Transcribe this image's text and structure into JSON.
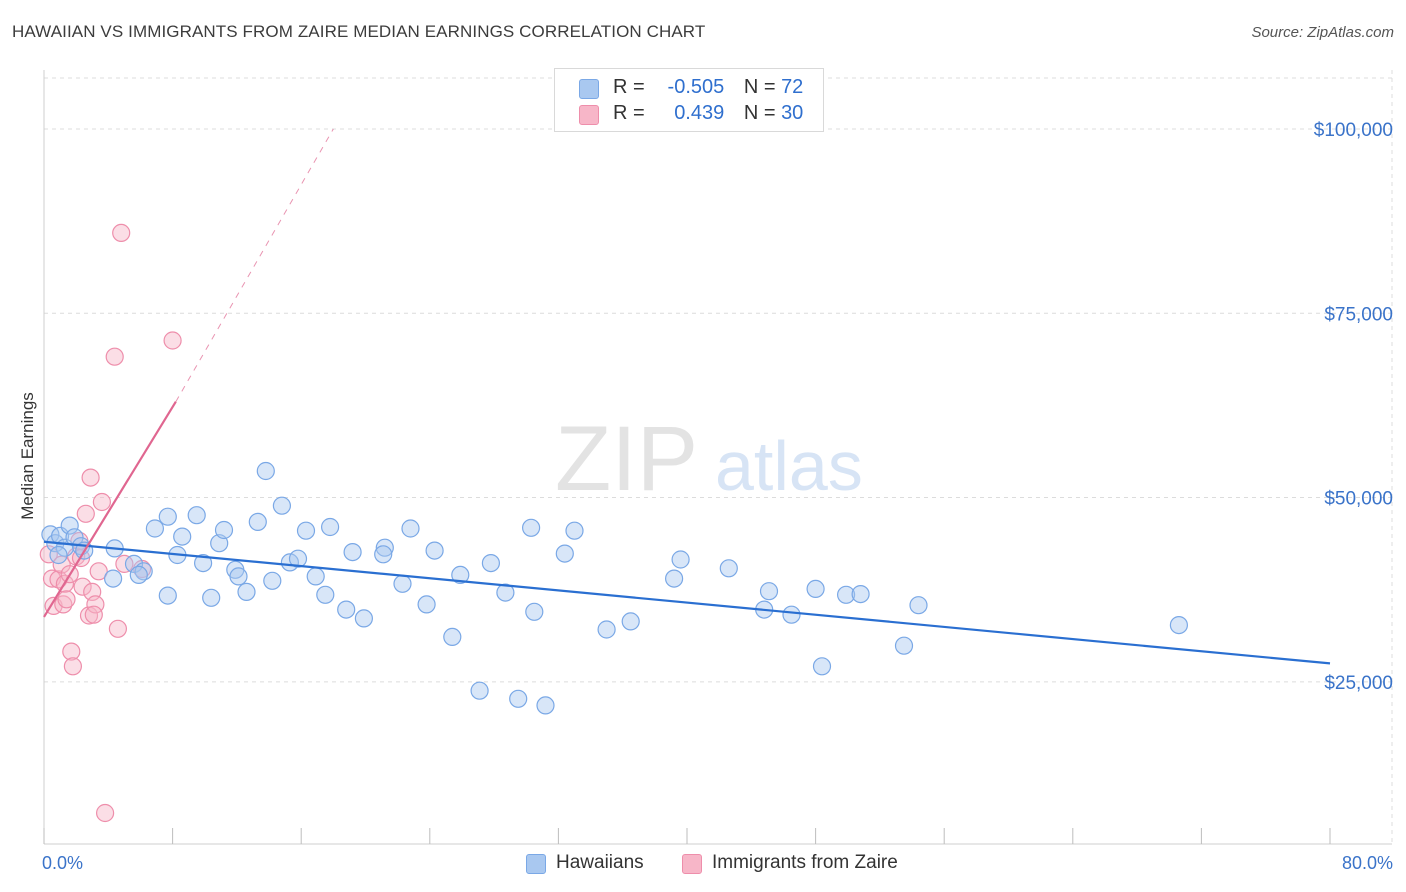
{
  "header": {
    "title": "HAWAIIAN VS IMMIGRANTS FROM ZAIRE MEDIAN EARNINGS CORRELATION CHART",
    "source": "Source: ZipAtlas.com"
  },
  "watermark": {
    "zip": "ZIP",
    "atlas": "atlas"
  },
  "legend": {
    "rows": [
      {
        "r_label": "R =",
        "r_value": "-0.505",
        "n_label": "N =",
        "n_value": "72",
        "color": "#a9c8f0"
      },
      {
        "r_label": "R =",
        "r_value": "0.439",
        "n_label": "N =",
        "n_value": "30",
        "color": "#f7b6c8"
      }
    ]
  },
  "bottom_legend": [
    {
      "label": "Hawaiians",
      "color": "#a9c8f0"
    },
    {
      "label": "Immigrants from Zaire",
      "color": "#f7b6c8"
    }
  ],
  "colors": {
    "blue_fill": "#a9c8f0",
    "blue_stroke": "#7aa8e6",
    "blue_line": "#2a6fd1",
    "pink_fill": "#f7b6c8",
    "pink_stroke": "#ee8eab",
    "pink_line": "#e06690",
    "grid": "#dcdcdc",
    "tick_label": "#3a73c9"
  },
  "chart_data": {
    "type": "scatter",
    "title": "HAWAIIAN VS IMMIGRANTS FROM ZAIRE MEDIAN EARNINGS CORRELATION CHART",
    "xlabel": "",
    "ylabel": "Median Earnings",
    "xlim": [
      0,
      80
    ],
    "ylim": [
      3000,
      108000
    ],
    "x_tick_labels": [
      "0.0%",
      "80.0%"
    ],
    "y_ticks": [
      25000,
      50000,
      75000,
      100000
    ],
    "y_tick_labels": [
      "$25,000",
      "$50,000",
      "$75,000",
      "$100,000"
    ],
    "grid": true,
    "legend_position": "top-center",
    "series": [
      {
        "name": "Hawaiians",
        "trend": {
          "x0": 0,
          "y0": 44000,
          "x1": 80,
          "y1": 27500
        },
        "points": [
          [
            0.4,
            45000
          ],
          [
            0.7,
            43800
          ],
          [
            1.0,
            44800
          ],
          [
            1.3,
            43200
          ],
          [
            1.6,
            46200
          ],
          [
            1.9,
            44600
          ],
          [
            2.3,
            43400
          ],
          [
            2.5,
            42800
          ],
          [
            4.4,
            43100
          ],
          [
            4.3,
            39000
          ],
          [
            5.6,
            41000
          ],
          [
            6.2,
            40000
          ],
          [
            5.9,
            39500
          ],
          [
            6.9,
            45800
          ],
          [
            7.7,
            47400
          ],
          [
            7.7,
            36700
          ],
          [
            8.3,
            42200
          ],
          [
            8.6,
            44700
          ],
          [
            9.5,
            47600
          ],
          [
            9.9,
            41100
          ],
          [
            10.4,
            36400
          ],
          [
            10.9,
            43800
          ],
          [
            11.2,
            45600
          ],
          [
            11.9,
            40200
          ],
          [
            12.1,
            39300
          ],
          [
            12.6,
            37200
          ],
          [
            13.3,
            46700
          ],
          [
            13.8,
            53600
          ],
          [
            14.2,
            38700
          ],
          [
            14.8,
            48900
          ],
          [
            15.3,
            41200
          ],
          [
            15.8,
            41700
          ],
          [
            16.3,
            45500
          ],
          [
            16.9,
            39300
          ],
          [
            17.5,
            36800
          ],
          [
            17.8,
            46000
          ],
          [
            18.8,
            34800
          ],
          [
            19.2,
            42600
          ],
          [
            19.9,
            33600
          ],
          [
            21.2,
            43200
          ],
          [
            21.1,
            42300
          ],
          [
            22.3,
            38300
          ],
          [
            22.8,
            45800
          ],
          [
            23.8,
            35500
          ],
          [
            24.3,
            42800
          ],
          [
            25.4,
            31100
          ],
          [
            25.9,
            39500
          ],
          [
            27.1,
            23800
          ],
          [
            27.8,
            41100
          ],
          [
            28.7,
            37100
          ],
          [
            29.5,
            22700
          ],
          [
            30.3,
            45900
          ],
          [
            30.5,
            34500
          ],
          [
            31.2,
            21800
          ],
          [
            32.4,
            42400
          ],
          [
            33.0,
            45500
          ],
          [
            35.0,
            32100
          ],
          [
            36.5,
            33200
          ],
          [
            39.2,
            39000
          ],
          [
            39.6,
            41600
          ],
          [
            42.6,
            40400
          ],
          [
            44.8,
            34800
          ],
          [
            45.1,
            37300
          ],
          [
            46.5,
            34100
          ],
          [
            48.0,
            37600
          ],
          [
            48.4,
            27100
          ],
          [
            49.9,
            36800
          ],
          [
            50.8,
            36900
          ],
          [
            53.5,
            29900
          ],
          [
            54.4,
            35400
          ],
          [
            70.6,
            32700
          ],
          [
            0.9,
            42200
          ]
        ]
      },
      {
        "name": "Immigrants from Zaire",
        "trend": {
          "x0": 0,
          "y0": 33800,
          "x1": 8.2,
          "y1": 63000,
          "dash_x1": 18.0,
          "dash_y1": 100000
        },
        "points": [
          [
            0.3,
            42300
          ],
          [
            0.5,
            39000
          ],
          [
            0.6,
            35300
          ],
          [
            0.9,
            38900
          ],
          [
            1.1,
            40900
          ],
          [
            1.2,
            35500
          ],
          [
            1.3,
            38300
          ],
          [
            1.4,
            36200
          ],
          [
            1.6,
            39600
          ],
          [
            1.7,
            29100
          ],
          [
            1.8,
            27100
          ],
          [
            2.0,
            42000
          ],
          [
            2.2,
            44100
          ],
          [
            2.3,
            41800
          ],
          [
            2.4,
            37900
          ],
          [
            2.6,
            47800
          ],
          [
            2.8,
            34000
          ],
          [
            2.9,
            52700
          ],
          [
            3.0,
            37200
          ],
          [
            3.2,
            35500
          ],
          [
            3.1,
            34100
          ],
          [
            3.4,
            40000
          ],
          [
            3.6,
            49400
          ],
          [
            4.4,
            69100
          ],
          [
            4.6,
            32200
          ],
          [
            4.8,
            85900
          ],
          [
            5.0,
            41000
          ],
          [
            6.1,
            40300
          ],
          [
            8.0,
            71300
          ],
          [
            3.8,
            7200
          ]
        ]
      }
    ]
  }
}
